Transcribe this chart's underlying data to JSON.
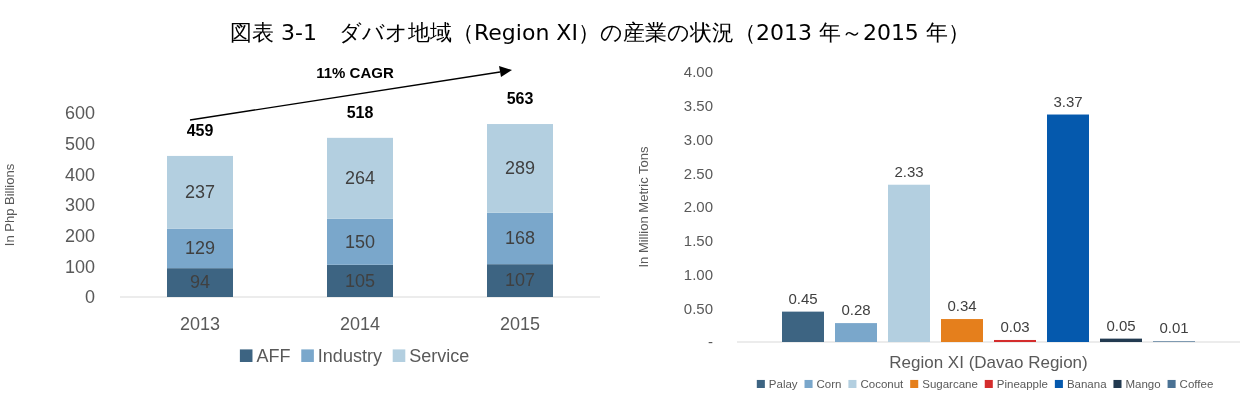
{
  "chart_data": [
    {
      "type": "bar",
      "title": "図表 3-1　ダバオ地域（Region XI）の産業の状況（2013 年～2015 年）",
      "stacked": true,
      "ylabel": "In Php Billions",
      "categories": [
        "2013",
        "2014",
        "2015"
      ],
      "series": [
        {
          "name": "AFF",
          "color": "#3d6482",
          "values": [
            94,
            105,
            107
          ]
        },
        {
          "name": "Industry",
          "color": "#7aa7cb",
          "values": [
            129,
            150,
            168
          ]
        },
        {
          "name": "Service",
          "color": "#b3cfe0",
          "values": [
            237,
            264,
            289
          ]
        }
      ],
      "totals": [
        "459",
        "518",
        "563"
      ],
      "annotations": [
        "11% CAGR"
      ],
      "data_labels": true,
      "ylim": [
        0,
        600
      ],
      "yticks": [
        0,
        100,
        200,
        300,
        400,
        500,
        600
      ],
      "legend": "bottom"
    },
    {
      "type": "bar",
      "ylabel": "In Million Metric Tons",
      "categories": [
        "Region XI (Davao Region)"
      ],
      "series": [
        {
          "name": "Palay",
          "color": "#3d6482",
          "values": [
            0.45
          ]
        },
        {
          "name": "Corn",
          "color": "#7aa7cb",
          "values": [
            0.28
          ]
        },
        {
          "name": "Coconut",
          "color": "#b3cfe0",
          "values": [
            2.33
          ]
        },
        {
          "name": "Sugarcane",
          "color": "#e57f1c",
          "values": [
            0.34
          ]
        },
        {
          "name": "Pineapple",
          "color": "#d42d2d",
          "values": [
            0.03
          ]
        },
        {
          "name": "Banana",
          "color": "#0559ad",
          "values": [
            3.37
          ]
        },
        {
          "name": "Mango",
          "color": "#223a50",
          "values": [
            0.05
          ]
        },
        {
          "name": "Coffee",
          "color": "#4a7294",
          "values": [
            0.01
          ]
        }
      ],
      "data_labels": true,
      "ylim": [
        0,
        4
      ],
      "yticks": [
        {
          "value": 0,
          "label": "-"
        },
        {
          "value": 0.5,
          "label": "0.50"
        },
        {
          "value": 1,
          "label": "1.00"
        },
        {
          "value": 1.5,
          "label": "1.50"
        },
        {
          "value": 2,
          "label": "2.00"
        },
        {
          "value": 2.5,
          "label": "2.50"
        },
        {
          "value": 3,
          "label": "3.00"
        },
        {
          "value": 3.5,
          "label": "3.50"
        },
        {
          "value": 4,
          "label": "4.00"
        }
      ],
      "legend": "bottom"
    }
  ]
}
